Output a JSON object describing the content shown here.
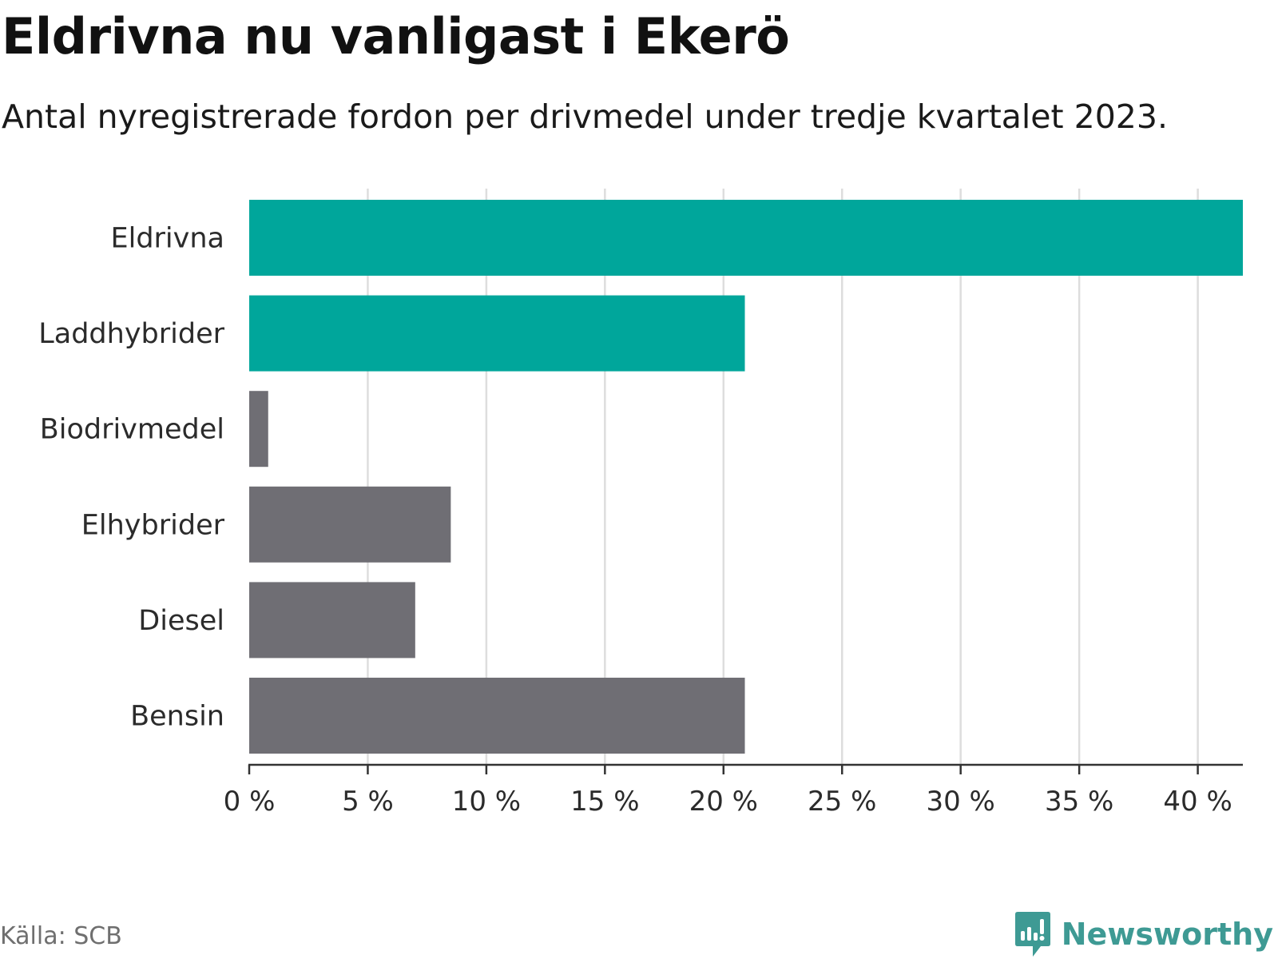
{
  "title": "Eldrivna nu vanligast i Ekerö",
  "subtitle": "Antal nyregistrerade fordon per drivmedel under tredje kvartalet 2023.",
  "source": "Källa: SCB",
  "brand": {
    "name": "Newsworthy",
    "logo_icon": "newsworthy-bar-chart-icon"
  },
  "colors": {
    "highlight": "#00a69b",
    "muted": "#6f6e74",
    "grid": "#dddddd",
    "axis": "#333333",
    "brand": "#3e9a94"
  },
  "chart_data": {
    "type": "bar",
    "orientation": "horizontal",
    "title": "Eldrivna nu vanligast i Ekerö",
    "subtitle": "Antal nyregistrerade fordon per drivmedel under tredje kvartalet 2023.",
    "xlabel": "",
    "ylabel": "",
    "unit": "%",
    "categories": [
      "Eldrivna",
      "Laddhybrider",
      "Biodrivmedel",
      "Elhybrider",
      "Diesel",
      "Bensin"
    ],
    "values": [
      41.9,
      20.9,
      0.8,
      8.5,
      7.0,
      20.9
    ],
    "highlighted": [
      true,
      true,
      false,
      false,
      false,
      false
    ],
    "xlim": [
      0,
      41.9
    ],
    "x_ticks": [
      0,
      5,
      10,
      15,
      20,
      25,
      30,
      35,
      40
    ],
    "x_tick_labels": [
      "0 %",
      "5 %",
      "10 %",
      "15 %",
      "20 %",
      "25 %",
      "30 %",
      "35 %",
      "40 %"
    ],
    "grid": true,
    "legend": "none"
  }
}
